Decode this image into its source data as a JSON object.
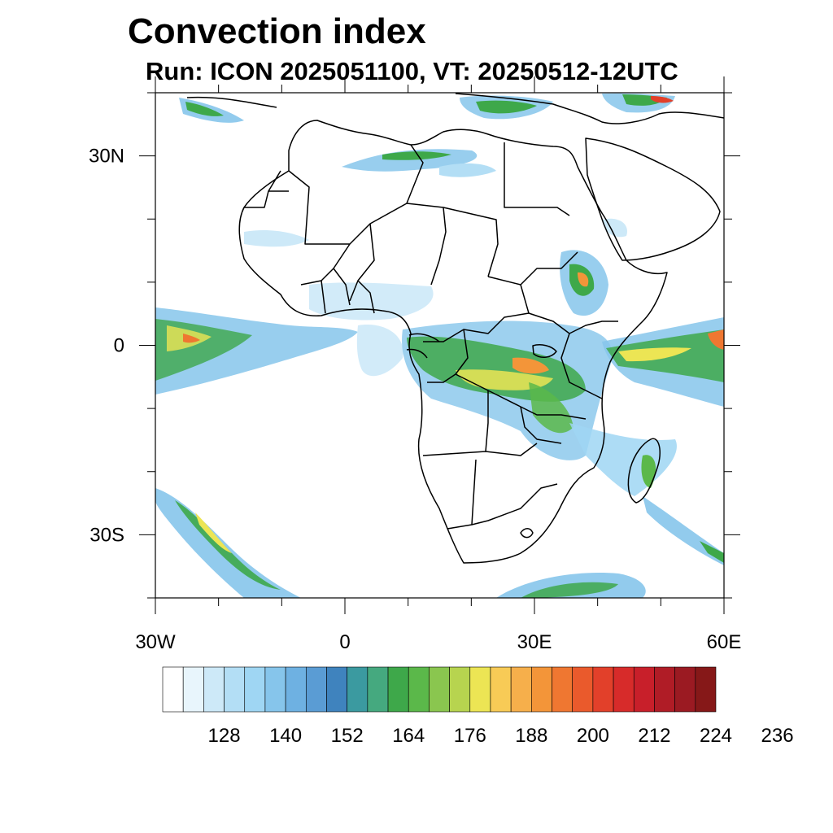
{
  "title": "Convection index",
  "subtitle": "Run: ICON 2025051100,  VT: 20250512-12UTC",
  "map": {
    "lon_range": [
      -30,
      60
    ],
    "lat_range": [
      -40,
      40
    ],
    "lon_ticks": [
      {
        "value": -30,
        "label": "30W"
      },
      {
        "value": 0,
        "label": "0"
      },
      {
        "value": 30,
        "label": "30E"
      },
      {
        "value": 60,
        "label": "60E"
      }
    ],
    "lat_ticks": [
      {
        "value": 30,
        "label": "30N"
      },
      {
        "value": 0,
        "label": "0"
      },
      {
        "value": -30,
        "label": "30S"
      }
    ]
  },
  "colorbar": {
    "colors": [
      "#ffffff",
      "#e8f5fc",
      "#cde9f8",
      "#b3def5",
      "#9fd6f3",
      "#86c5eb",
      "#6eb1e2",
      "#5a9cd4",
      "#3f83be",
      "#3b9aa0",
      "#45a97f",
      "#3ea84a",
      "#5bb84a",
      "#8ac64f",
      "#b7d44f",
      "#ece554",
      "#f8cb56",
      "#f6af4b",
      "#f39539",
      "#ef7731",
      "#ea5a2c",
      "#e2402a",
      "#d72b2a",
      "#c81f2a",
      "#b01c26",
      "#9b1a22",
      "#861818"
    ],
    "labels": [
      "128",
      "140",
      "152",
      "164",
      "176",
      "188",
      "200",
      "212",
      "224",
      "236"
    ]
  }
}
